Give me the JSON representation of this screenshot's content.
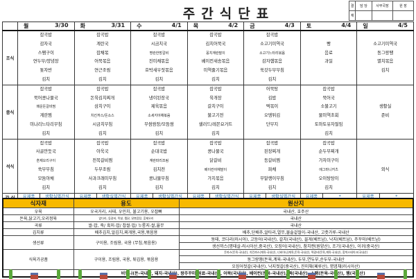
{
  "title": "주간식단표",
  "approval": {
    "label": [
      "결",
      "재"
    ],
    "roles": [
      "담 당",
      "사무국장",
      "원 장"
    ]
  },
  "meal_labels": [
    "조식",
    "중식",
    "석식",
    "간 식"
  ],
  "days": [
    {
      "day": "월",
      "date": "3/30",
      "breakfast": [
        "잡곡밥",
        "감자국",
        "스팸구이",
        "연두부/양념장",
        "톳자반",
        "김치"
      ],
      "lunch": [
        "잡곡밥",
        "북어콩나물국",
        "매운돈갈비찜",
        "계란찜",
        "미나리느타리무침",
        "김치"
      ],
      "dinner": [
        "잡곡밥",
        "사골만둣국",
        "훈제오리구이",
        "쑥부무침",
        "모둠야채",
        "김치"
      ],
      "snack": [
        "유제품",
        "생활실별간식"
      ]
    },
    {
      "day": "화",
      "date": "3/31",
      "breakfast": [
        "잡곡밥",
        "계란국",
        "잡채볶",
        "어묵볶음",
        "연근조림",
        "김치"
      ],
      "lunch": [
        "잡곡밥",
        "돈육김치찌개",
        "삼치구이",
        "치킨까스/돈소스",
        "시금치무침",
        "김치"
      ],
      "dinner": [
        "잡곡밥",
        "아욱국",
        "전복갈비찜",
        "두부조림",
        "사과크래미무침",
        "김치"
      ],
      "snack": [
        "유제품",
        "생활실별간식"
      ]
    },
    {
      "day": "수",
      "date": "4/1",
      "breakfast": [
        "잡곡밥",
        "시금치국",
        "명란한방갈비",
        "진미채볶음",
        "호박새우젓볶음",
        "김치"
      ],
      "lunch": [
        "잡곡밥",
        "냉이된장국",
        "제육볶음",
        "소세지야채볶음",
        "무쌈쌈장/모듬쌈",
        "김치"
      ],
      "dinner": [
        "잡곡밥",
        "순대국밥",
        "계란파리조림",
        "김치전",
        "콩나물무침",
        "김치"
      ],
      "snack": [
        "유제품",
        "생활실별간식"
      ]
    },
    {
      "day": "목",
      "date": "4/2",
      "breakfast": [
        "잡곡밥",
        "김치어묵국",
        "꽁치계란말이",
        "베이컨새송볶음",
        "미역줄기볶음",
        "김치"
      ],
      "lunch": [
        "잡곡밥",
        "육개장",
        "갈치구이",
        "불고기전",
        "샐러드/레몬요거트",
        "김치"
      ],
      "dinner": [
        "잡곡밥",
        "콩나물국",
        "닭갈비",
        "베이컨야채말이",
        "가지볶음",
        "김치"
      ],
      "snack": [
        "유제품",
        "생활실별간식"
      ]
    },
    {
      "day": "금",
      "date": "4/3",
      "breakfast": [
        "잡곡밥",
        "소고기미역국",
        "소고기느타리볶음",
        "감자햄볶음",
        "쑥갓두부무침",
        "김치"
      ],
      "lunch": [
        "어묵탕",
        "김밥",
        "떡볶이",
        "오뎅튀김",
        "단무지",
        ""
      ],
      "dinner": [
        "잡곡밥",
        "된장찌개",
        "등갈비찜",
        "파채",
        "무말랭이무침",
        "김치"
      ],
      "snack": [
        "유제품",
        "생활실별간식"
      ]
    },
    {
      "day": "토",
      "date": "4/4",
      "breakfast": [
        "",
        "빵",
        "음료",
        "과일",
        "",
        ""
      ],
      "lunch": [
        "잡곡밥",
        "북어국",
        "소불고기",
        "물미역초회",
        "토마토유자절임",
        "김치"
      ],
      "dinner": [
        "잡곡밥",
        "순두부찌개",
        "가자미구이",
        "에그마니카츠",
        "오이탕탕이",
        "김치"
      ],
      "snack": [
        "유제품",
        "*"
      ]
    },
    {
      "day": "일",
      "date": "4/5",
      "breakfast": [
        "",
        "소고기미역국",
        "동그랑땡",
        "멸치볶음",
        "김치",
        ""
      ],
      "lunch": [
        "",
        "",
        "생활실",
        "준비",
        "",
        ""
      ],
      "dinner": [
        "",
        "",
        "",
        "외식",
        "",
        ""
      ],
      "snack": [
        "유제품",
        "*"
      ]
    }
  ],
  "origin": {
    "headers": [
      "식자재",
      "용도",
      "원산지"
    ],
    "rows": [
      {
        "item": "우육",
        "use": "우국거리, 사태, 우민치, 불고기용, 우잡뼈",
        "origin": [
          "국내산, 호주산"
        ]
      },
      {
        "item": "돈육,닭고기,오리정육",
        "use": "앞다리, 등갈비, 목살, 찜닭, 닭볶음탕, 훈제오리",
        "origin": [
          "국내산"
        ]
      },
      {
        "item": "곡류",
        "use": "쌀-밥, 죽/ 흑미-밥/ 찹쌀-밥/ 누룽지-쌀,율무",
        "origin": [
          "국내산"
        ]
      },
      {
        "item": "김치류",
        "use": "배추김치,알김치,찌개용,국용,볶음용",
        "origin": [
          "배추,단배추,알타리,열무,물솔겉절이-국내산, 고춧가루-국내산"
        ]
      },
      {
        "item": "생선류",
        "use": "구이용, 조림용, 국용 (무침,볶음용)",
        "origin": [
          "동태, 코다리(러시아), 고등어(국내산), 갈치(국내산), 꼴게(베트남), 낙지(베트남), 주꾸미(베트남)",
          "생선까스(명태살-러시아산,중국산), 오징어(국내산), 참치캔(원양산), 조기(국내산), 이귀(중국산)"
        ]
      },
      {
        "item": "식육가공품",
        "use": "구이용, 조림용, 국용, 튀김용, 볶음용",
        "origin": [
          "돈까스(돈육-국내산), 치킨까스(계육-국내산), 너비아니(계육,돈육-국내산), 떡갈비(돈육,계육-국내산), 함박스테이크(국내산)",
          "동그랑땡(돈육,계육-국내산), 두부,연두부,순두부-국내산",
          "오징어젓갈(국내산), 낙지젓갈(중국산), 진미채(페루산), 명엽채(러시아산)"
        ]
      }
    ],
    "footer": "비엔나(돈-국내산, 돼지-국내산), 왕주꾸미(원료-국내산), 어묵(국내산), 베이컨(돈육-국내산), 떡(국내산), 스팸(돈육-국내산), 햄(국내산)"
  }
}
